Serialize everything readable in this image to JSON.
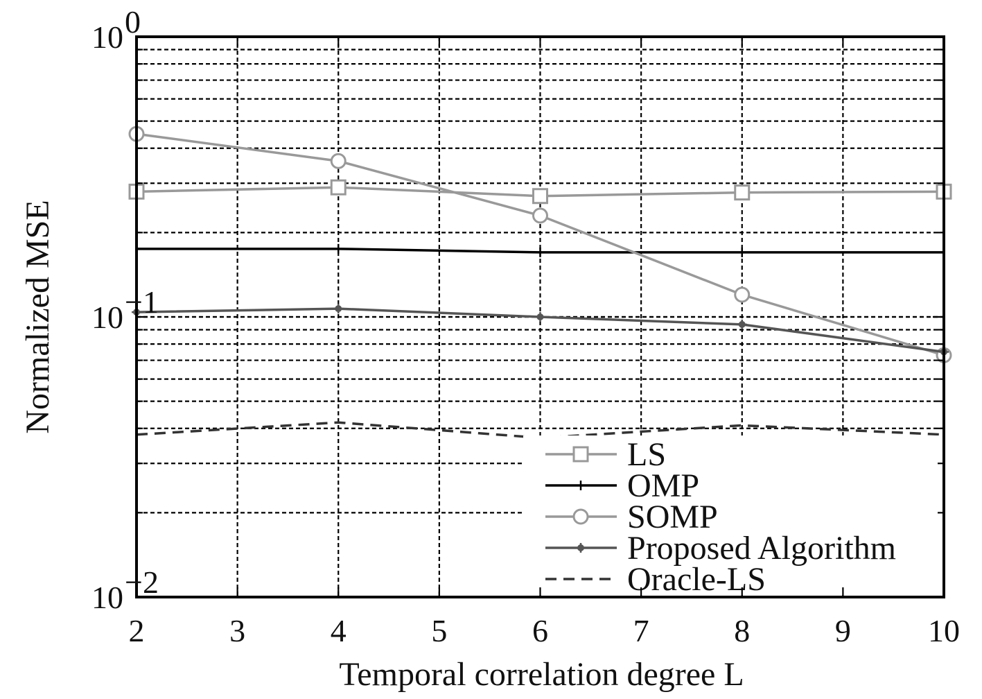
{
  "chart_data": {
    "type": "line",
    "xlabel": "Temporal correlation degree L",
    "ylabel": "Normalized MSE",
    "x_ticks": [
      "2",
      "3",
      "4",
      "5",
      "6",
      "7",
      "8",
      "9",
      "10"
    ],
    "xlim": [
      2,
      10
    ],
    "y_scale": "log",
    "ylim": [
      0.01,
      1
    ],
    "y_ticks": [
      {
        "value": 1,
        "base": "10",
        "exp": "0"
      },
      {
        "value": 0.1,
        "base": "10",
        "exp": "−1"
      },
      {
        "value": 0.01,
        "base": "10",
        "exp": "−2"
      }
    ],
    "grid": true,
    "legend_position": "bottom-right",
    "series": [
      {
        "name": "LS",
        "color": "#999999",
        "marker": "square",
        "dash": "",
        "x": [
          2,
          4,
          6,
          8,
          10
        ],
        "y": [
          0.28,
          0.29,
          0.27,
          0.278,
          0.28
        ]
      },
      {
        "name": "OMP",
        "color": "#000000",
        "marker": "plus",
        "dash": "",
        "x": [
          2,
          4,
          6,
          8,
          10
        ],
        "y": [
          0.175,
          0.175,
          0.17,
          0.17,
          0.17
        ]
      },
      {
        "name": "SOMP",
        "color": "#999999",
        "marker": "circle",
        "dash": "",
        "x": [
          2,
          4,
          6,
          8,
          10
        ],
        "y": [
          0.45,
          0.36,
          0.23,
          0.12,
          0.073
        ]
      },
      {
        "name": "Proposed Algorithm",
        "color": "#555555",
        "marker": "star",
        "dash": "",
        "x": [
          2,
          4,
          6,
          8,
          10
        ],
        "y": [
          0.104,
          0.107,
          0.1,
          0.094,
          0.075
        ]
      },
      {
        "name": "Oracle-LS",
        "color": "#333333",
        "marker": "none",
        "dash": "16 10",
        "x": [
          2,
          4,
          6,
          8,
          10
        ],
        "y": [
          0.038,
          0.042,
          0.037,
          0.041,
          0.038
        ]
      }
    ]
  }
}
